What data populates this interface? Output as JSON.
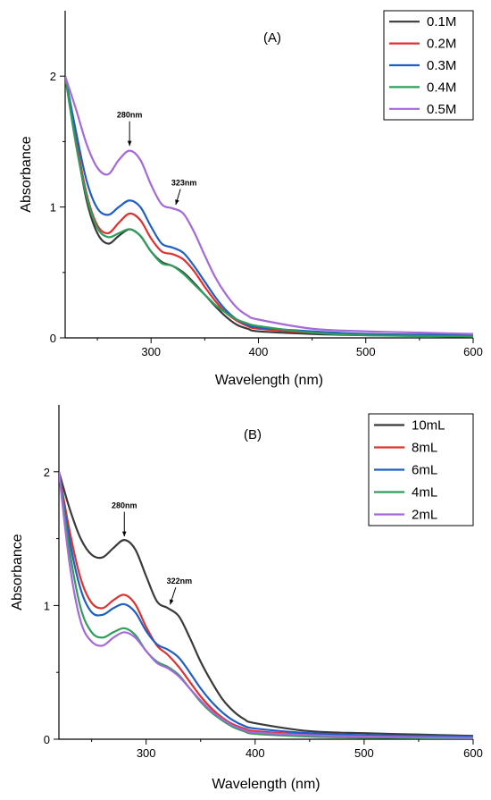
{
  "chart_data": [
    {
      "type": "line",
      "panel_label": "(A)",
      "xlabel": "Wavelength (nm)",
      "ylabel": "Absorbance",
      "xlim": [
        220,
        600
      ],
      "ylim": [
        0,
        2.5
      ],
      "x_ticks": [
        300,
        400,
        500,
        600
      ],
      "y_ticks": [
        0,
        1,
        2
      ],
      "legend_position": "top-right",
      "annotations": [
        {
          "text": "280nm",
          "x": 280,
          "y": 1.44
        },
        {
          "text": "323nm",
          "x": 323,
          "y": 0.99
        }
      ],
      "series": [
        {
          "name": "0.1M",
          "color": "#3a3a3a",
          "points": [
            [
              220,
              2.0
            ],
            [
              230,
              1.5
            ],
            [
              240,
              1.05
            ],
            [
              250,
              0.8
            ],
            [
              260,
              0.72
            ],
            [
              270,
              0.78
            ],
            [
              280,
              0.83
            ],
            [
              290,
              0.78
            ],
            [
              300,
              0.66
            ],
            [
              310,
              0.58
            ],
            [
              320,
              0.55
            ],
            [
              330,
              0.5
            ],
            [
              340,
              0.42
            ],
            [
              350,
              0.33
            ],
            [
              360,
              0.24
            ],
            [
              370,
              0.16
            ],
            [
              380,
              0.1
            ],
            [
              390,
              0.07
            ],
            [
              400,
              0.05
            ],
            [
              450,
              0.03
            ],
            [
              500,
              0.02
            ],
            [
              550,
              0.015
            ],
            [
              600,
              0.01
            ]
          ]
        },
        {
          "name": "0.2M",
          "color": "#e03030",
          "points": [
            [
              220,
              2.0
            ],
            [
              230,
              1.52
            ],
            [
              240,
              1.1
            ],
            [
              250,
              0.86
            ],
            [
              260,
              0.8
            ],
            [
              270,
              0.88
            ],
            [
              280,
              0.95
            ],
            [
              290,
              0.9
            ],
            [
              300,
              0.76
            ],
            [
              310,
              0.66
            ],
            [
              320,
              0.64
            ],
            [
              330,
              0.6
            ],
            [
              340,
              0.51
            ],
            [
              350,
              0.39
            ],
            [
              360,
              0.28
            ],
            [
              370,
              0.19
            ],
            [
              380,
              0.13
            ],
            [
              390,
              0.09
            ],
            [
              400,
              0.07
            ],
            [
              450,
              0.04
            ],
            [
              500,
              0.03
            ],
            [
              550,
              0.02
            ],
            [
              600,
              0.015
            ]
          ]
        },
        {
          "name": "0.3M",
          "color": "#1f5fc4",
          "points": [
            [
              220,
              2.0
            ],
            [
              230,
              1.58
            ],
            [
              240,
              1.2
            ],
            [
              250,
              0.99
            ],
            [
              260,
              0.94
            ],
            [
              270,
              1.0
            ],
            [
              280,
              1.05
            ],
            [
              290,
              1.0
            ],
            [
              300,
              0.85
            ],
            [
              310,
              0.72
            ],
            [
              320,
              0.69
            ],
            [
              330,
              0.65
            ],
            [
              340,
              0.55
            ],
            [
              350,
              0.43
            ],
            [
              360,
              0.31
            ],
            [
              370,
              0.21
            ],
            [
              380,
              0.14
            ],
            [
              390,
              0.1
            ],
            [
              400,
              0.08
            ],
            [
              450,
              0.05
            ],
            [
              500,
              0.03
            ],
            [
              550,
              0.025
            ],
            [
              600,
              0.02
            ]
          ]
        },
        {
          "name": "0.4M",
          "color": "#2e9e5a",
          "points": [
            [
              220,
              2.0
            ],
            [
              230,
              1.48
            ],
            [
              240,
              1.08
            ],
            [
              250,
              0.84
            ],
            [
              260,
              0.77
            ],
            [
              270,
              0.8
            ],
            [
              280,
              0.83
            ],
            [
              290,
              0.78
            ],
            [
              300,
              0.66
            ],
            [
              310,
              0.57
            ],
            [
              320,
              0.55
            ],
            [
              330,
              0.49
            ],
            [
              340,
              0.41
            ],
            [
              350,
              0.33
            ],
            [
              360,
              0.25
            ],
            [
              370,
              0.19
            ],
            [
              380,
              0.14
            ],
            [
              390,
              0.11
            ],
            [
              400,
              0.09
            ],
            [
              450,
              0.04
            ],
            [
              500,
              0.02
            ],
            [
              550,
              0.015
            ],
            [
              600,
              0.01
            ]
          ]
        },
        {
          "name": "0.5M",
          "color": "#a569d8",
          "points": [
            [
              220,
              2.0
            ],
            [
              230,
              1.75
            ],
            [
              240,
              1.48
            ],
            [
              250,
              1.3
            ],
            [
              260,
              1.25
            ],
            [
              270,
              1.36
            ],
            [
              280,
              1.43
            ],
            [
              290,
              1.36
            ],
            [
              300,
              1.17
            ],
            [
              310,
              1.02
            ],
            [
              320,
              0.99
            ],
            [
              330,
              0.95
            ],
            [
              340,
              0.81
            ],
            [
              350,
              0.63
            ],
            [
              360,
              0.46
            ],
            [
              370,
              0.33
            ],
            [
              380,
              0.23
            ],
            [
              390,
              0.17
            ],
            [
              400,
              0.14
            ],
            [
              450,
              0.07
            ],
            [
              500,
              0.05
            ],
            [
              550,
              0.04
            ],
            [
              600,
              0.03
            ]
          ]
        }
      ]
    },
    {
      "type": "line",
      "panel_label": "(B)",
      "xlabel": "Wavelength (nm)",
      "ylabel": "Absorbance",
      "xlim": [
        220,
        600
      ],
      "ylim": [
        0,
        2.5
      ],
      "x_ticks": [
        300,
        400,
        500,
        600
      ],
      "y_ticks": [
        0,
        1,
        2
      ],
      "legend_position": "top-right",
      "annotations": [
        {
          "text": "280nm",
          "x": 280,
          "y": 1.49
        },
        {
          "text": "322nm",
          "x": 322,
          "y": 0.98
        }
      ],
      "series": [
        {
          "name": "10mL",
          "color": "#3a3a3a",
          "points": [
            [
              220,
              2.0
            ],
            [
              230,
              1.72
            ],
            [
              240,
              1.5
            ],
            [
              250,
              1.38
            ],
            [
              260,
              1.36
            ],
            [
              270,
              1.43
            ],
            [
              280,
              1.49
            ],
            [
              290,
              1.42
            ],
            [
              300,
              1.22
            ],
            [
              310,
              1.03
            ],
            [
              320,
              0.98
            ],
            [
              330,
              0.92
            ],
            [
              340,
              0.76
            ],
            [
              350,
              0.58
            ],
            [
              360,
              0.43
            ],
            [
              370,
              0.3
            ],
            [
              380,
              0.21
            ],
            [
              390,
              0.15
            ],
            [
              400,
              0.12
            ],
            [
              450,
              0.06
            ],
            [
              500,
              0.045
            ],
            [
              550,
              0.035
            ],
            [
              600,
              0.025
            ]
          ]
        },
        {
          "name": "8mL",
          "color": "#e03030",
          "points": [
            [
              220,
              2.0
            ],
            [
              230,
              1.55
            ],
            [
              240,
              1.2
            ],
            [
              250,
              1.02
            ],
            [
              260,
              0.98
            ],
            [
              270,
              1.04
            ],
            [
              280,
              1.08
            ],
            [
              290,
              1.01
            ],
            [
              300,
              0.84
            ],
            [
              310,
              0.7
            ],
            [
              320,
              0.63
            ],
            [
              330,
              0.54
            ],
            [
              340,
              0.43
            ],
            [
              350,
              0.32
            ],
            [
              360,
              0.23
            ],
            [
              370,
              0.16
            ],
            [
              380,
              0.11
            ],
            [
              390,
              0.08
            ],
            [
              400,
              0.06
            ],
            [
              450,
              0.035
            ],
            [
              500,
              0.025
            ],
            [
              550,
              0.02
            ],
            [
              600,
              0.015
            ]
          ]
        },
        {
          "name": "6mL",
          "color": "#1f5fc4",
          "points": [
            [
              220,
              2.0
            ],
            [
              230,
              1.48
            ],
            [
              240,
              1.12
            ],
            [
              250,
              0.95
            ],
            [
              260,
              0.93
            ],
            [
              270,
              0.98
            ],
            [
              280,
              1.01
            ],
            [
              290,
              0.95
            ],
            [
              300,
              0.81
            ],
            [
              310,
              0.71
            ],
            [
              320,
              0.67
            ],
            [
              330,
              0.61
            ],
            [
              340,
              0.5
            ],
            [
              350,
              0.38
            ],
            [
              360,
              0.28
            ],
            [
              370,
              0.2
            ],
            [
              380,
              0.14
            ],
            [
              390,
              0.1
            ],
            [
              400,
              0.08
            ],
            [
              450,
              0.045
            ],
            [
              500,
              0.03
            ],
            [
              550,
              0.025
            ],
            [
              600,
              0.02
            ]
          ]
        },
        {
          "name": "4mL",
          "color": "#2e9e5a",
          "points": [
            [
              220,
              2.0
            ],
            [
              230,
              1.4
            ],
            [
              240,
              0.98
            ],
            [
              250,
              0.8
            ],
            [
              260,
              0.76
            ],
            [
              270,
              0.8
            ],
            [
              280,
              0.83
            ],
            [
              290,
              0.78
            ],
            [
              300,
              0.66
            ],
            [
              310,
              0.58
            ],
            [
              320,
              0.54
            ],
            [
              330,
              0.48
            ],
            [
              340,
              0.38
            ],
            [
              350,
              0.28
            ],
            [
              360,
              0.2
            ],
            [
              370,
              0.14
            ],
            [
              380,
              0.09
            ],
            [
              390,
              0.06
            ],
            [
              400,
              0.04
            ],
            [
              450,
              0.02
            ],
            [
              500,
              0.012
            ],
            [
              550,
              0.008
            ],
            [
              600,
              0.005
            ]
          ]
        },
        {
          "name": "2mL",
          "color": "#a569d8",
          "points": [
            [
              220,
              2.0
            ],
            [
              230,
              1.3
            ],
            [
              240,
              0.88
            ],
            [
              250,
              0.73
            ],
            [
              260,
              0.7
            ],
            [
              270,
              0.76
            ],
            [
              280,
              0.8
            ],
            [
              290,
              0.76
            ],
            [
              300,
              0.66
            ],
            [
              310,
              0.57
            ],
            [
              320,
              0.53
            ],
            [
              330,
              0.47
            ],
            [
              340,
              0.38
            ],
            [
              350,
              0.29
            ],
            [
              360,
              0.21
            ],
            [
              370,
              0.15
            ],
            [
              380,
              0.1
            ],
            [
              390,
              0.07
            ],
            [
              400,
              0.05
            ],
            [
              450,
              0.03
            ],
            [
              500,
              0.02
            ],
            [
              550,
              0.015
            ],
            [
              600,
              0.01
            ]
          ]
        }
      ]
    }
  ]
}
